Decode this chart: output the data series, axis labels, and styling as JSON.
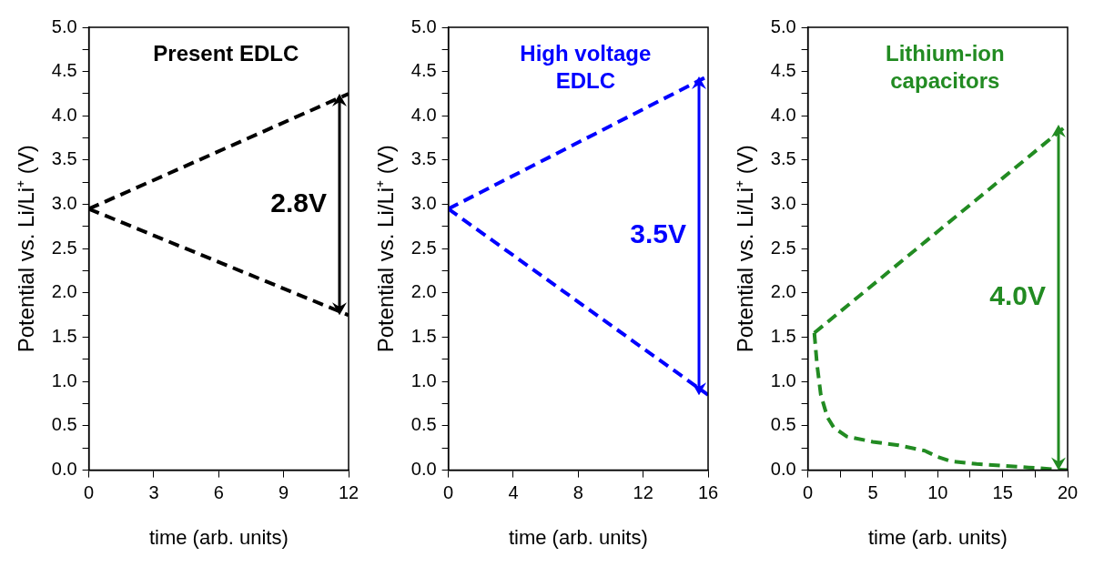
{
  "chart_data": [
    {
      "type": "line",
      "title": "Present EDLC",
      "xlabel": "time (arb. units)",
      "ylabel": "Potential vs. Li/Li⁺ (V)",
      "annotations": [
        "2.8V"
      ],
      "line_style": "dashed",
      "marker": "none",
      "grid": false,
      "legend": false,
      "xlim": [
        0,
        12
      ],
      "xticks": [
        0,
        3,
        6,
        9,
        12
      ],
      "ylim": [
        0,
        5
      ],
      "yticks": [
        {
          "value": 0,
          "label": "0.0"
        },
        {
          "value": 0.25,
          "label": null
        },
        {
          "value": 0.5,
          "label": "0.5"
        },
        {
          "value": 0.75,
          "label": null
        },
        {
          "value": 1,
          "label": "1.0"
        },
        {
          "value": 1.25,
          "label": null
        },
        {
          "value": 1.5,
          "label": "1.5"
        },
        {
          "value": 1.75,
          "label": null
        },
        {
          "value": 2,
          "label": "2.0"
        },
        {
          "value": 2.25,
          "label": null
        },
        {
          "value": 2.5,
          "label": "2.5"
        },
        {
          "value": 2.75,
          "label": null
        },
        {
          "value": 3,
          "label": "3.0"
        },
        {
          "value": 3.25,
          "label": null
        },
        {
          "value": 3.5,
          "label": "3.5"
        },
        {
          "value": 3.75,
          "label": null
        },
        {
          "value": 4,
          "label": "4.0"
        },
        {
          "value": 4.25,
          "label": null
        },
        {
          "value": 4.5,
          "label": "4.5"
        },
        {
          "value": 4.75,
          "label": null
        },
        {
          "value": 5,
          "label": "5.0"
        }
      ],
      "series": [
        {
          "color": "#000000",
          "x": [
            0,
            12
          ],
          "values": [
            2.95,
            4.25
          ]
        },
        {
          "color": "#000000",
          "x": [
            0,
            12
          ],
          "values": [
            2.95,
            1.75
          ]
        }
      ]
    },
    {
      "type": "line",
      "title": "High voltage EDLC",
      "xlabel": "time (arb. units)",
      "ylabel": "Potential vs. Li/Li⁺ (V)",
      "annotations": [
        "3.5V"
      ],
      "line_style": "dashed",
      "marker": "none",
      "grid": false,
      "legend": false,
      "xlim": [
        0,
        16
      ],
      "xticks": [
        0,
        4,
        8,
        12,
        16
      ],
      "ylim": [
        0,
        5
      ],
      "yticks": [
        {
          "value": 0,
          "label": "0.0"
        },
        {
          "value": 0.25,
          "label": null
        },
        {
          "value": 0.5,
          "label": "0.5"
        },
        {
          "value": 0.75,
          "label": null
        },
        {
          "value": 1,
          "label": "1.0"
        },
        {
          "value": 1.25,
          "label": null
        },
        {
          "value": 1.5,
          "label": "1.5"
        },
        {
          "value": 1.75,
          "label": null
        },
        {
          "value": 2,
          "label": "2.0"
        },
        {
          "value": 2.25,
          "label": null
        },
        {
          "value": 2.5,
          "label": "2.5"
        },
        {
          "value": 2.75,
          "label": null
        },
        {
          "value": 3,
          "label": "3.0"
        },
        {
          "value": 3.25,
          "label": null
        },
        {
          "value": 3.5,
          "label": "3.5"
        },
        {
          "value": 3.75,
          "label": null
        },
        {
          "value": 4,
          "label": "4.0"
        },
        {
          "value": 4.25,
          "label": null
        },
        {
          "value": 4.5,
          "label": "4.5"
        },
        {
          "value": 4.75,
          "label": null
        },
        {
          "value": 5,
          "label": "5.0"
        }
      ],
      "series": [
        {
          "color": "#0000ff",
          "x": [
            0,
            16
          ],
          "values": [
            2.95,
            4.45
          ]
        },
        {
          "color": "#0000ff",
          "x": [
            0,
            16
          ],
          "values": [
            2.95,
            0.85
          ]
        }
      ]
    },
    {
      "type": "line",
      "title": "Lithium-ion capacitors",
      "xlabel": "time (arb. units)",
      "ylabel": "Potential vs. Li/Li⁺ (V)",
      "annotations": [
        "4.0V"
      ],
      "line_style": "dashed",
      "marker": "none",
      "grid": false,
      "legend": false,
      "xlim": [
        0,
        20
      ],
      "xticks": [
        0,
        {
          "value": 2.5,
          "label": null
        },
        5,
        {
          "value": 7.5,
          "label": null
        },
        10,
        {
          "value": 12.5,
          "label": null
        },
        15,
        {
          "value": 17.5,
          "label": null
        },
        20
      ],
      "ylim": [
        0,
        5
      ],
      "yticks": [
        {
          "value": 0,
          "label": "0.0"
        },
        {
          "value": 0.25,
          "label": null
        },
        {
          "value": 0.5,
          "label": "0.5"
        },
        {
          "value": 0.75,
          "label": null
        },
        {
          "value": 1,
          "label": "1.0"
        },
        {
          "value": 1.25,
          "label": null
        },
        {
          "value": 1.5,
          "label": "1.5"
        },
        {
          "value": 1.75,
          "label": null
        },
        {
          "value": 2,
          "label": "2.0"
        },
        {
          "value": 2.25,
          "label": null
        },
        {
          "value": 2.5,
          "label": "2.5"
        },
        {
          "value": 2.75,
          "label": null
        },
        {
          "value": 3,
          "label": "3.0"
        },
        {
          "value": 3.25,
          "label": null
        },
        {
          "value": 3.5,
          "label": "3.5"
        },
        {
          "value": 3.75,
          "label": null
        },
        {
          "value": 4,
          "label": "4.0"
        },
        {
          "value": 4.25,
          "label": null
        },
        {
          "value": 4.5,
          "label": "4.5"
        },
        {
          "value": 4.75,
          "label": null
        },
        {
          "value": 5,
          "label": "5.0"
        }
      ],
      "series": [
        {
          "color": "#228b22",
          "x": [
            0.5,
            20
          ],
          "values": [
            1.55,
            3.9
          ]
        },
        {
          "color": "#228b22",
          "x": [
            0.5,
            0.7,
            1,
            1.5,
            2,
            3,
            5,
            7,
            9,
            10,
            11,
            13,
            15,
            17,
            20
          ],
          "values": [
            1.55,
            1.2,
            0.85,
            0.6,
            0.48,
            0.38,
            0.32,
            0.28,
            0.22,
            0.15,
            0.1,
            0.07,
            0.05,
            0.03,
            0
          ]
        }
      ]
    }
  ]
}
